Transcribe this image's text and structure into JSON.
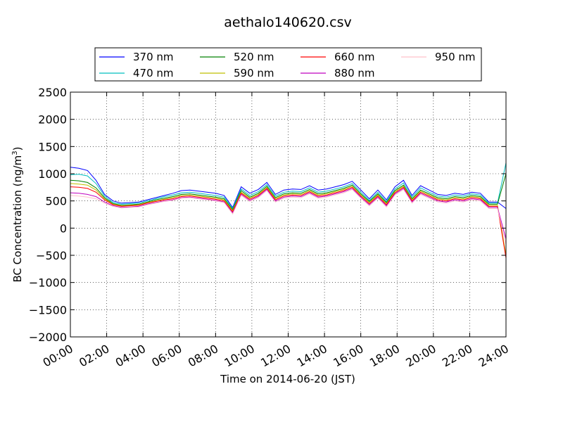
{
  "chart_data": {
    "type": "line",
    "title": "aethalo140620.csv",
    "xlabel": "Time on 2014-06-20 (JST)",
    "ylabel_main": "BC Concentration (ng/m",
    "ylabel_sup": "3",
    "ylabel_tail": ")",
    "xlim": [
      "00:00",
      "24:00"
    ],
    "ylim": [
      -2000,
      2500
    ],
    "x_ticks": [
      "00:00",
      "02:00",
      "04:00",
      "06:00",
      "08:00",
      "10:00",
      "12:00",
      "14:00",
      "16:00",
      "18:00",
      "20:00",
      "22:00",
      "24:00"
    ],
    "y_ticks": [
      -2000,
      -1500,
      -1000,
      -500,
      0,
      500,
      1000,
      1500,
      2000,
      2500
    ],
    "y_tick_labels": [
      "−2000",
      "−1500",
      "−1000",
      "−500",
      "0",
      "500",
      "1000",
      "1500",
      "2000",
      "2500"
    ],
    "grid": true,
    "legend_placement": "top-center",
    "series": [
      {
        "name": "370 nm",
        "color": "#0000ff",
        "values": [
          1120,
          1100,
          1060,
          880,
          620,
          500,
          460,
          470,
          480,
          520,
          560,
          600,
          640,
          690,
          700,
          680,
          660,
          640,
          600,
          380,
          760,
          640,
          710,
          840,
          620,
          700,
          720,
          710,
          780,
          700,
          720,
          760,
          800,
          860,
          700,
          540,
          700,
          520,
          760,
          880,
          600,
          780,
          700,
          620,
          600,
          640,
          620,
          660,
          640,
          480,
          480,
          360
        ]
      },
      {
        "name": "470 nm",
        "color": "#00bfbf",
        "values": [
          980,
          990,
          960,
          820,
          590,
          470,
          440,
          450,
          460,
          500,
          540,
          580,
          610,
          650,
          660,
          640,
          620,
          600,
          570,
          360,
          720,
          600,
          670,
          800,
          590,
          660,
          680,
          670,
          740,
          660,
          680,
          720,
          760,
          820,
          660,
          510,
          660,
          490,
          720,
          830,
          570,
          740,
          660,
          590,
          570,
          610,
          590,
          630,
          610,
          460,
          460,
          1200
        ]
      },
      {
        "name": "520 nm",
        "color": "#008000",
        "values": [
          880,
          870,
          840,
          740,
          560,
          450,
          420,
          430,
          440,
          480,
          520,
          550,
          580,
          620,
          630,
          610,
          590,
          570,
          540,
          340,
          690,
          570,
          640,
          770,
          560,
          630,
          650,
          640,
          710,
          630,
          650,
          690,
          730,
          790,
          630,
          490,
          630,
          470,
          690,
          790,
          540,
          700,
          630,
          560,
          540,
          580,
          560,
          600,
          580,
          440,
          440,
          1000
        ]
      },
      {
        "name": "590 nm",
        "color": "#bfbf00",
        "values": [
          820,
          810,
          790,
          700,
          540,
          440,
          410,
          420,
          430,
          470,
          500,
          530,
          560,
          600,
          610,
          590,
          570,
          550,
          520,
          320,
          660,
          550,
          620,
          750,
          540,
          610,
          630,
          620,
          690,
          610,
          630,
          670,
          710,
          770,
          610,
          470,
          610,
          450,
          670,
          770,
          520,
          680,
          610,
          540,
          520,
          560,
          540,
          580,
          560,
          420,
          420,
          -500
        ]
      },
      {
        "name": "660 nm",
        "color": "#ff0000",
        "values": [
          760,
          750,
          730,
          660,
          520,
          430,
          400,
          410,
          420,
          460,
          490,
          520,
          540,
          580,
          590,
          570,
          550,
          530,
          500,
          300,
          640,
          530,
          600,
          730,
          520,
          590,
          610,
          600,
          670,
          590,
          610,
          650,
          690,
          750,
          590,
          450,
          590,
          430,
          650,
          750,
          500,
          660,
          590,
          520,
          500,
          540,
          520,
          560,
          540,
          400,
          400,
          -550
        ]
      },
      {
        "name": "880 nm",
        "color": "#bf00bf",
        "values": [
          650,
          640,
          620,
          580,
          480,
          410,
          380,
          390,
          400,
          440,
          470,
          500,
          520,
          560,
          570,
          550,
          530,
          510,
          480,
          280,
          620,
          510,
          580,
          710,
          500,
          570,
          590,
          580,
          650,
          570,
          590,
          630,
          670,
          730,
          570,
          430,
          570,
          410,
          630,
          730,
          480,
          640,
          570,
          500,
          480,
          520,
          500,
          540,
          520,
          380,
          380,
          -200
        ]
      },
      {
        "name": "950 nm",
        "color": "#ffc0cb",
        "values": [
          600,
          590,
          570,
          540,
          460,
          400,
          370,
          380,
          390,
          430,
          460,
          490,
          510,
          550,
          560,
          540,
          520,
          500,
          470,
          260,
          600,
          490,
          560,
          690,
          480,
          550,
          570,
          560,
          630,
          550,
          570,
          610,
          650,
          710,
          550,
          410,
          550,
          390,
          610,
          710,
          460,
          620,
          550,
          480,
          460,
          500,
          480,
          520,
          500,
          360,
          360,
          -300
        ]
      }
    ]
  }
}
